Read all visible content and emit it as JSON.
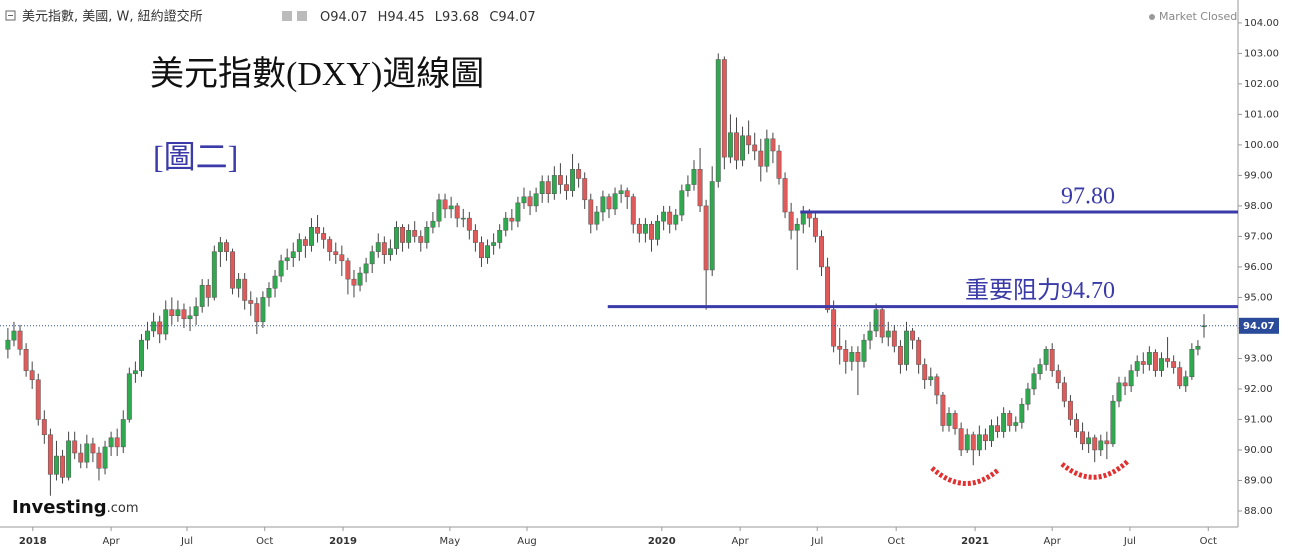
{
  "chart_data": {
    "type": "candlestick",
    "header": "美元指數, 美國, W, 紐約證交所",
    "ohlc_labels": [
      "O",
      "H",
      "L",
      "C"
    ],
    "status": "Market Closed",
    "logo": [
      "Investing",
      ".com"
    ],
    "title": "美元指數(DXY)週線圖",
    "subtitle": "[圖二]",
    "up_color": "#2fa84f",
    "down_color": "#e05a5a",
    "level_color": "#3a3aa8",
    "levels": [
      {
        "value": 97.8,
        "label": "97.80",
        "start": 130.5
      },
      {
        "value": 94.7,
        "label": "重要阻力94.70",
        "start": 98.8
      }
    ],
    "ylim": [
      87.54,
      104.75
    ],
    "xlim": [
      -1.3,
      202.6
    ],
    "yticks": [
      {
        "value": 88,
        "label": "88.00"
      },
      {
        "value": 89,
        "label": "89.00"
      },
      {
        "value": 90,
        "label": "90.00"
      },
      {
        "value": 91,
        "label": "91.00"
      },
      {
        "value": 92,
        "label": "92.00"
      },
      {
        "value": 93,
        "label": "93.00"
      },
      {
        "value": 94,
        "label": "94.00"
      },
      {
        "value": 95,
        "label": "95.00"
      },
      {
        "value": 96,
        "label": "96.00"
      },
      {
        "value": 97,
        "label": "97.00"
      },
      {
        "value": 98,
        "label": "98.00"
      },
      {
        "value": 99,
        "label": "99.00"
      },
      {
        "value": 100,
        "label": "100.00"
      },
      {
        "value": 101,
        "label": "101.00"
      },
      {
        "value": 102,
        "label": "102.00"
      },
      {
        "value": 103,
        "label": "103.00"
      },
      {
        "value": 104,
        "label": "104.00"
      }
    ],
    "xticks": [
      {
        "value": 4.1,
        "label": "2018"
      },
      {
        "value": 17.0,
        "label": "Apr"
      },
      {
        "value": 29.5,
        "label": "Jul"
      },
      {
        "value": 42.3,
        "label": "Oct"
      },
      {
        "value": 55.2,
        "label": "2019"
      },
      {
        "value": 72.8,
        "label": "May"
      },
      {
        "value": 85.5,
        "label": "Aug"
      },
      {
        "value": 107.7,
        "label": "2020"
      },
      {
        "value": 120.6,
        "label": "Apr"
      },
      {
        "value": 133.3,
        "label": "Jul"
      },
      {
        "value": 146.3,
        "label": "Oct"
      },
      {
        "value": 159.3,
        "label": "2021"
      },
      {
        "value": 172.0,
        "label": "Apr"
      },
      {
        "value": 184.8,
        "label": "Jul"
      },
      {
        "value": 197.7,
        "label": "Oct"
      }
    ],
    "candles": [
      [
        93.3,
        94.0,
        93.0,
        93.6
      ],
      [
        93.6,
        94.2,
        93.4,
        93.9
      ],
      [
        93.9,
        94.1,
        93.1,
        93.3
      ],
      [
        93.3,
        93.5,
        92.4,
        92.6
      ],
      [
        92.6,
        92.9,
        92.0,
        92.3
      ],
      [
        92.3,
        92.5,
        90.8,
        91.0
      ],
      [
        91.0,
        91.3,
        90.2,
        90.5
      ],
      [
        90.5,
        90.7,
        88.5,
        89.2
      ],
      [
        89.2,
        90.3,
        89.0,
        89.8
      ],
      [
        89.8,
        90.0,
        88.9,
        89.1
      ],
      [
        89.1,
        90.6,
        89.0,
        90.3
      ],
      [
        90.3,
        90.6,
        89.7,
        89.9
      ],
      [
        89.9,
        90.2,
        89.4,
        89.6
      ],
      [
        89.6,
        90.5,
        89.4,
        90.2
      ],
      [
        90.2,
        90.4,
        89.6,
        89.9
      ],
      [
        89.9,
        90.1,
        89.0,
        89.4
      ],
      [
        89.4,
        90.3,
        89.2,
        90.1
      ],
      [
        90.1,
        90.6,
        89.8,
        90.4
      ],
      [
        90.4,
        90.7,
        89.8,
        90.1
      ],
      [
        90.1,
        91.3,
        89.9,
        91.0
      ],
      [
        91.0,
        92.7,
        90.9,
        92.5
      ],
      [
        92.5,
        92.9,
        92.2,
        92.6
      ],
      [
        92.6,
        93.8,
        92.4,
        93.6
      ],
      [
        93.6,
        94.2,
        93.3,
        93.9
      ],
      [
        93.9,
        94.5,
        93.7,
        94.2
      ],
      [
        94.2,
        94.4,
        93.5,
        93.8
      ],
      [
        93.8,
        94.9,
        93.6,
        94.6
      ],
      [
        94.6,
        95.0,
        94.1,
        94.4
      ],
      [
        94.4,
        94.9,
        94.2,
        94.6
      ],
      [
        94.6,
        94.8,
        94.0,
        94.3
      ],
      [
        94.3,
        94.7,
        93.9,
        94.4
      ],
      [
        94.4,
        95.0,
        94.1,
        94.7
      ],
      [
        94.7,
        95.6,
        94.5,
        95.4
      ],
      [
        95.4,
        95.6,
        94.7,
        95.0
      ],
      [
        95.0,
        96.7,
        94.9,
        96.5
      ],
      [
        96.5,
        96.98,
        96.0,
        96.8
      ],
      [
        96.8,
        96.9,
        96.2,
        96.5
      ],
      [
        96.5,
        96.6,
        95.1,
        95.3
      ],
      [
        95.3,
        95.8,
        95.0,
        95.6
      ],
      [
        95.6,
        95.8,
        94.6,
        94.9
      ],
      [
        94.9,
        95.2,
        94.4,
        94.8
      ],
      [
        94.8,
        95.0,
        93.8,
        94.2
      ],
      [
        94.2,
        95.2,
        94.0,
        95.0
      ],
      [
        95.0,
        95.5,
        94.7,
        95.3
      ],
      [
        95.3,
        95.9,
        95.0,
        95.7
      ],
      [
        95.7,
        96.4,
        95.5,
        96.2
      ],
      [
        96.2,
        96.6,
        95.9,
        96.3
      ],
      [
        96.3,
        96.8,
        96.0,
        96.5
      ],
      [
        96.5,
        97.1,
        96.2,
        96.9
      ],
      [
        96.9,
        97.0,
        96.3,
        96.7
      ],
      [
        96.7,
        97.6,
        96.5,
        97.3
      ],
      [
        97.3,
        97.7,
        96.8,
        97.1
      ],
      [
        97.1,
        97.3,
        96.6,
        96.9
      ],
      [
        96.9,
        97.0,
        96.2,
        96.5
      ],
      [
        96.5,
        96.8,
        96.1,
        96.4
      ],
      [
        96.4,
        96.7,
        95.7,
        96.2
      ],
      [
        96.2,
        96.3,
        95.1,
        95.6
      ],
      [
        95.6,
        95.9,
        95.0,
        95.4
      ],
      [
        95.4,
        96.0,
        95.2,
        95.8
      ],
      [
        95.8,
        96.3,
        95.5,
        96.1
      ],
      [
        96.1,
        96.7,
        95.8,
        96.5
      ],
      [
        96.5,
        97.1,
        96.3,
        96.8
      ],
      [
        96.8,
        97.0,
        96.1,
        96.4
      ],
      [
        96.4,
        96.9,
        96.2,
        96.6
      ],
      [
        96.6,
        97.5,
        96.4,
        97.3
      ],
      [
        97.3,
        97.4,
        96.5,
        96.8
      ],
      [
        96.8,
        97.4,
        96.6,
        97.2
      ],
      [
        97.2,
        97.5,
        96.8,
        97.0
      ],
      [
        97.0,
        97.2,
        96.5,
        96.8
      ],
      [
        96.8,
        97.5,
        96.6,
        97.3
      ],
      [
        97.3,
        97.8,
        97.1,
        97.5
      ],
      [
        97.5,
        98.4,
        97.3,
        98.2
      ],
      [
        98.2,
        98.4,
        97.6,
        97.9
      ],
      [
        97.9,
        98.3,
        97.6,
        98.0
      ],
      [
        98.0,
        98.1,
        97.3,
        97.6
      ],
      [
        97.6,
        97.9,
        97.3,
        97.6
      ],
      [
        97.6,
        97.8,
        96.9,
        97.2
      ],
      [
        97.2,
        97.4,
        96.5,
        96.8
      ],
      [
        96.8,
        97.0,
        96.0,
        96.3
      ],
      [
        96.3,
        96.9,
        96.1,
        96.7
      ],
      [
        96.7,
        97.1,
        96.4,
        96.8
      ],
      [
        96.8,
        97.4,
        96.6,
        97.2
      ],
      [
        97.2,
        97.8,
        97.0,
        97.6
      ],
      [
        97.6,
        97.9,
        97.2,
        97.5
      ],
      [
        97.5,
        98.3,
        97.3,
        98.1
      ],
      [
        98.1,
        98.6,
        97.9,
        98.3
      ],
      [
        98.3,
        98.5,
        97.7,
        98.0
      ],
      [
        98.0,
        98.6,
        97.8,
        98.4
      ],
      [
        98.4,
        99.0,
        98.1,
        98.8
      ],
      [
        98.8,
        99.0,
        98.1,
        98.4
      ],
      [
        98.4,
        99.3,
        98.2,
        99.0
      ],
      [
        99.0,
        99.4,
        98.4,
        98.7
      ],
      [
        98.7,
        99.0,
        98.2,
        98.5
      ],
      [
        98.5,
        99.7,
        98.3,
        99.2
      ],
      [
        99.2,
        99.4,
        98.6,
        98.9
      ],
      [
        98.9,
        99.1,
        97.9,
        98.2
      ],
      [
        98.2,
        98.4,
        97.1,
        97.4
      ],
      [
        97.4,
        98.0,
        97.2,
        97.8
      ],
      [
        97.8,
        98.5,
        97.5,
        98.3
      ],
      [
        98.3,
        98.4,
        97.6,
        97.9
      ],
      [
        97.9,
        98.6,
        97.7,
        98.4
      ],
      [
        98.4,
        98.7,
        98.1,
        98.5
      ],
      [
        98.5,
        98.6,
        97.9,
        98.3
      ],
      [
        98.3,
        98.4,
        97.1,
        97.4
      ],
      [
        97.4,
        97.6,
        96.8,
        97.1
      ],
      [
        97.1,
        97.6,
        96.8,
        97.4
      ],
      [
        97.4,
        97.5,
        96.5,
        96.9
      ],
      [
        96.9,
        97.7,
        96.7,
        97.5
      ],
      [
        97.5,
        98.0,
        97.2,
        97.8
      ],
      [
        97.8,
        98.0,
        97.1,
        97.4
      ],
      [
        97.4,
        97.9,
        97.2,
        97.7
      ],
      [
        97.7,
        98.7,
        97.5,
        98.5
      ],
      [
        98.5,
        99.0,
        98.3,
        98.7
      ],
      [
        98.7,
        99.5,
        98.5,
        99.2
      ],
      [
        99.2,
        99.9,
        97.8,
        98.0
      ],
      [
        98.0,
        98.2,
        94.6,
        95.9
      ],
      [
        95.9,
        99.3,
        95.7,
        98.8
      ],
      [
        98.8,
        103.0,
        98.6,
        102.8
      ],
      [
        102.8,
        102.9,
        99.2,
        99.6
      ],
      [
        99.6,
        101.0,
        99.4,
        100.4
      ],
      [
        100.4,
        100.9,
        99.2,
        99.5
      ],
      [
        99.5,
        100.6,
        99.3,
        100.3
      ],
      [
        100.3,
        100.8,
        99.7,
        100.0
      ],
      [
        100.0,
        100.4,
        99.5,
        99.8
      ],
      [
        99.8,
        100.2,
        98.8,
        99.3
      ],
      [
        99.3,
        100.5,
        99.1,
        100.2
      ],
      [
        100.2,
        100.4,
        99.4,
        99.8
      ],
      [
        99.8,
        100.0,
        98.7,
        98.9
      ],
      [
        98.9,
        99.1,
        97.6,
        97.8
      ],
      [
        97.8,
        98.1,
        96.9,
        97.2
      ],
      [
        97.2,
        97.6,
        95.9,
        97.4
      ],
      [
        97.4,
        98.0,
        97.1,
        97.8
      ],
      [
        97.8,
        97.9,
        97.3,
        97.6
      ],
      [
        97.6,
        97.8,
        96.8,
        97.0
      ],
      [
        97.0,
        97.2,
        95.7,
        96.0
      ],
      [
        96.0,
        96.3,
        94.5,
        94.6
      ],
      [
        94.6,
        94.9,
        93.2,
        93.4
      ],
      [
        93.4,
        94.0,
        92.8,
        93.3
      ],
      [
        93.3,
        93.6,
        92.5,
        92.9
      ],
      [
        92.9,
        93.4,
        92.6,
        93.2
      ],
      [
        93.2,
        93.4,
        91.8,
        92.9
      ],
      [
        92.9,
        93.8,
        92.7,
        93.6
      ],
      [
        93.6,
        94.2,
        93.3,
        93.9
      ],
      [
        93.9,
        94.8,
        93.7,
        94.6
      ],
      [
        94.6,
        94.7,
        93.5,
        93.7
      ],
      [
        93.7,
        94.2,
        93.4,
        93.9
      ],
      [
        93.9,
        94.1,
        93.2,
        93.4
      ],
      [
        93.4,
        93.6,
        92.5,
        92.8
      ],
      [
        92.8,
        94.2,
        92.6,
        93.9
      ],
      [
        93.9,
        94.0,
        93.3,
        93.6
      ],
      [
        93.6,
        93.7,
        92.5,
        92.8
      ],
      [
        92.8,
        93.0,
        92.0,
        92.3
      ],
      [
        92.3,
        92.7,
        92.1,
        92.4
      ],
      [
        92.4,
        92.5,
        91.5,
        91.8
      ],
      [
        91.8,
        91.9,
        90.6,
        90.8
      ],
      [
        90.8,
        91.4,
        90.6,
        91.2
      ],
      [
        91.2,
        91.3,
        90.5,
        90.7
      ],
      [
        90.7,
        90.9,
        89.8,
        90.0
      ],
      [
        90.0,
        90.7,
        89.9,
        90.5
      ],
      [
        90.5,
        90.6,
        89.5,
        90.0
      ],
      [
        90.0,
        90.8,
        89.8,
        90.5
      ],
      [
        90.5,
        90.7,
        90.0,
        90.3
      ],
      [
        90.3,
        91.0,
        90.1,
        90.8
      ],
      [
        90.8,
        91.1,
        90.4,
        90.6
      ],
      [
        90.6,
        91.4,
        90.4,
        91.2
      ],
      [
        91.2,
        91.3,
        90.6,
        90.8
      ],
      [
        90.8,
        91.1,
        90.6,
        90.9
      ],
      [
        90.9,
        91.7,
        90.7,
        91.5
      ],
      [
        91.5,
        92.2,
        91.3,
        92.0
      ],
      [
        92.0,
        92.7,
        91.8,
        92.5
      ],
      [
        92.5,
        93.0,
        92.3,
        92.8
      ],
      [
        92.8,
        93.4,
        92.6,
        93.3
      ],
      [
        93.3,
        93.5,
        92.4,
        92.6
      ],
      [
        92.6,
        92.8,
        92.0,
        92.2
      ],
      [
        92.2,
        92.4,
        91.4,
        91.6
      ],
      [
        91.6,
        91.8,
        90.8,
        91.0
      ],
      [
        91.0,
        91.2,
        90.4,
        90.6
      ],
      [
        90.6,
        90.9,
        90.0,
        90.2
      ],
      [
        90.2,
        90.6,
        89.9,
        90.4
      ],
      [
        90.4,
        90.5,
        89.6,
        90.0
      ],
      [
        90.0,
        90.5,
        89.8,
        90.3
      ],
      [
        90.3,
        90.6,
        89.7,
        90.2
      ],
      [
        90.2,
        91.8,
        90.1,
        91.6
      ],
      [
        91.6,
        92.4,
        91.4,
        92.2
      ],
      [
        92.2,
        92.4,
        91.8,
        92.1
      ],
      [
        92.1,
        92.8,
        91.9,
        92.6
      ],
      [
        92.6,
        93.1,
        92.4,
        92.9
      ],
      [
        92.9,
        93.2,
        92.5,
        92.8
      ],
      [
        92.8,
        93.4,
        92.6,
        93.2
      ],
      [
        93.2,
        93.3,
        92.4,
        92.6
      ],
      [
        92.6,
        93.2,
        92.4,
        93.0
      ],
      [
        93.0,
        93.7,
        92.7,
        92.9
      ],
      [
        92.9,
        93.1,
        92.5,
        92.7
      ],
      [
        92.7,
        92.9,
        92.0,
        92.1
      ],
      [
        92.1,
        92.6,
        91.9,
        92.4
      ],
      [
        92.4,
        93.5,
        92.3,
        93.3
      ],
      [
        93.3,
        93.6,
        93.1,
        93.4
      ],
      [
        94.07,
        94.45,
        93.68,
        94.07
      ]
    ]
  }
}
